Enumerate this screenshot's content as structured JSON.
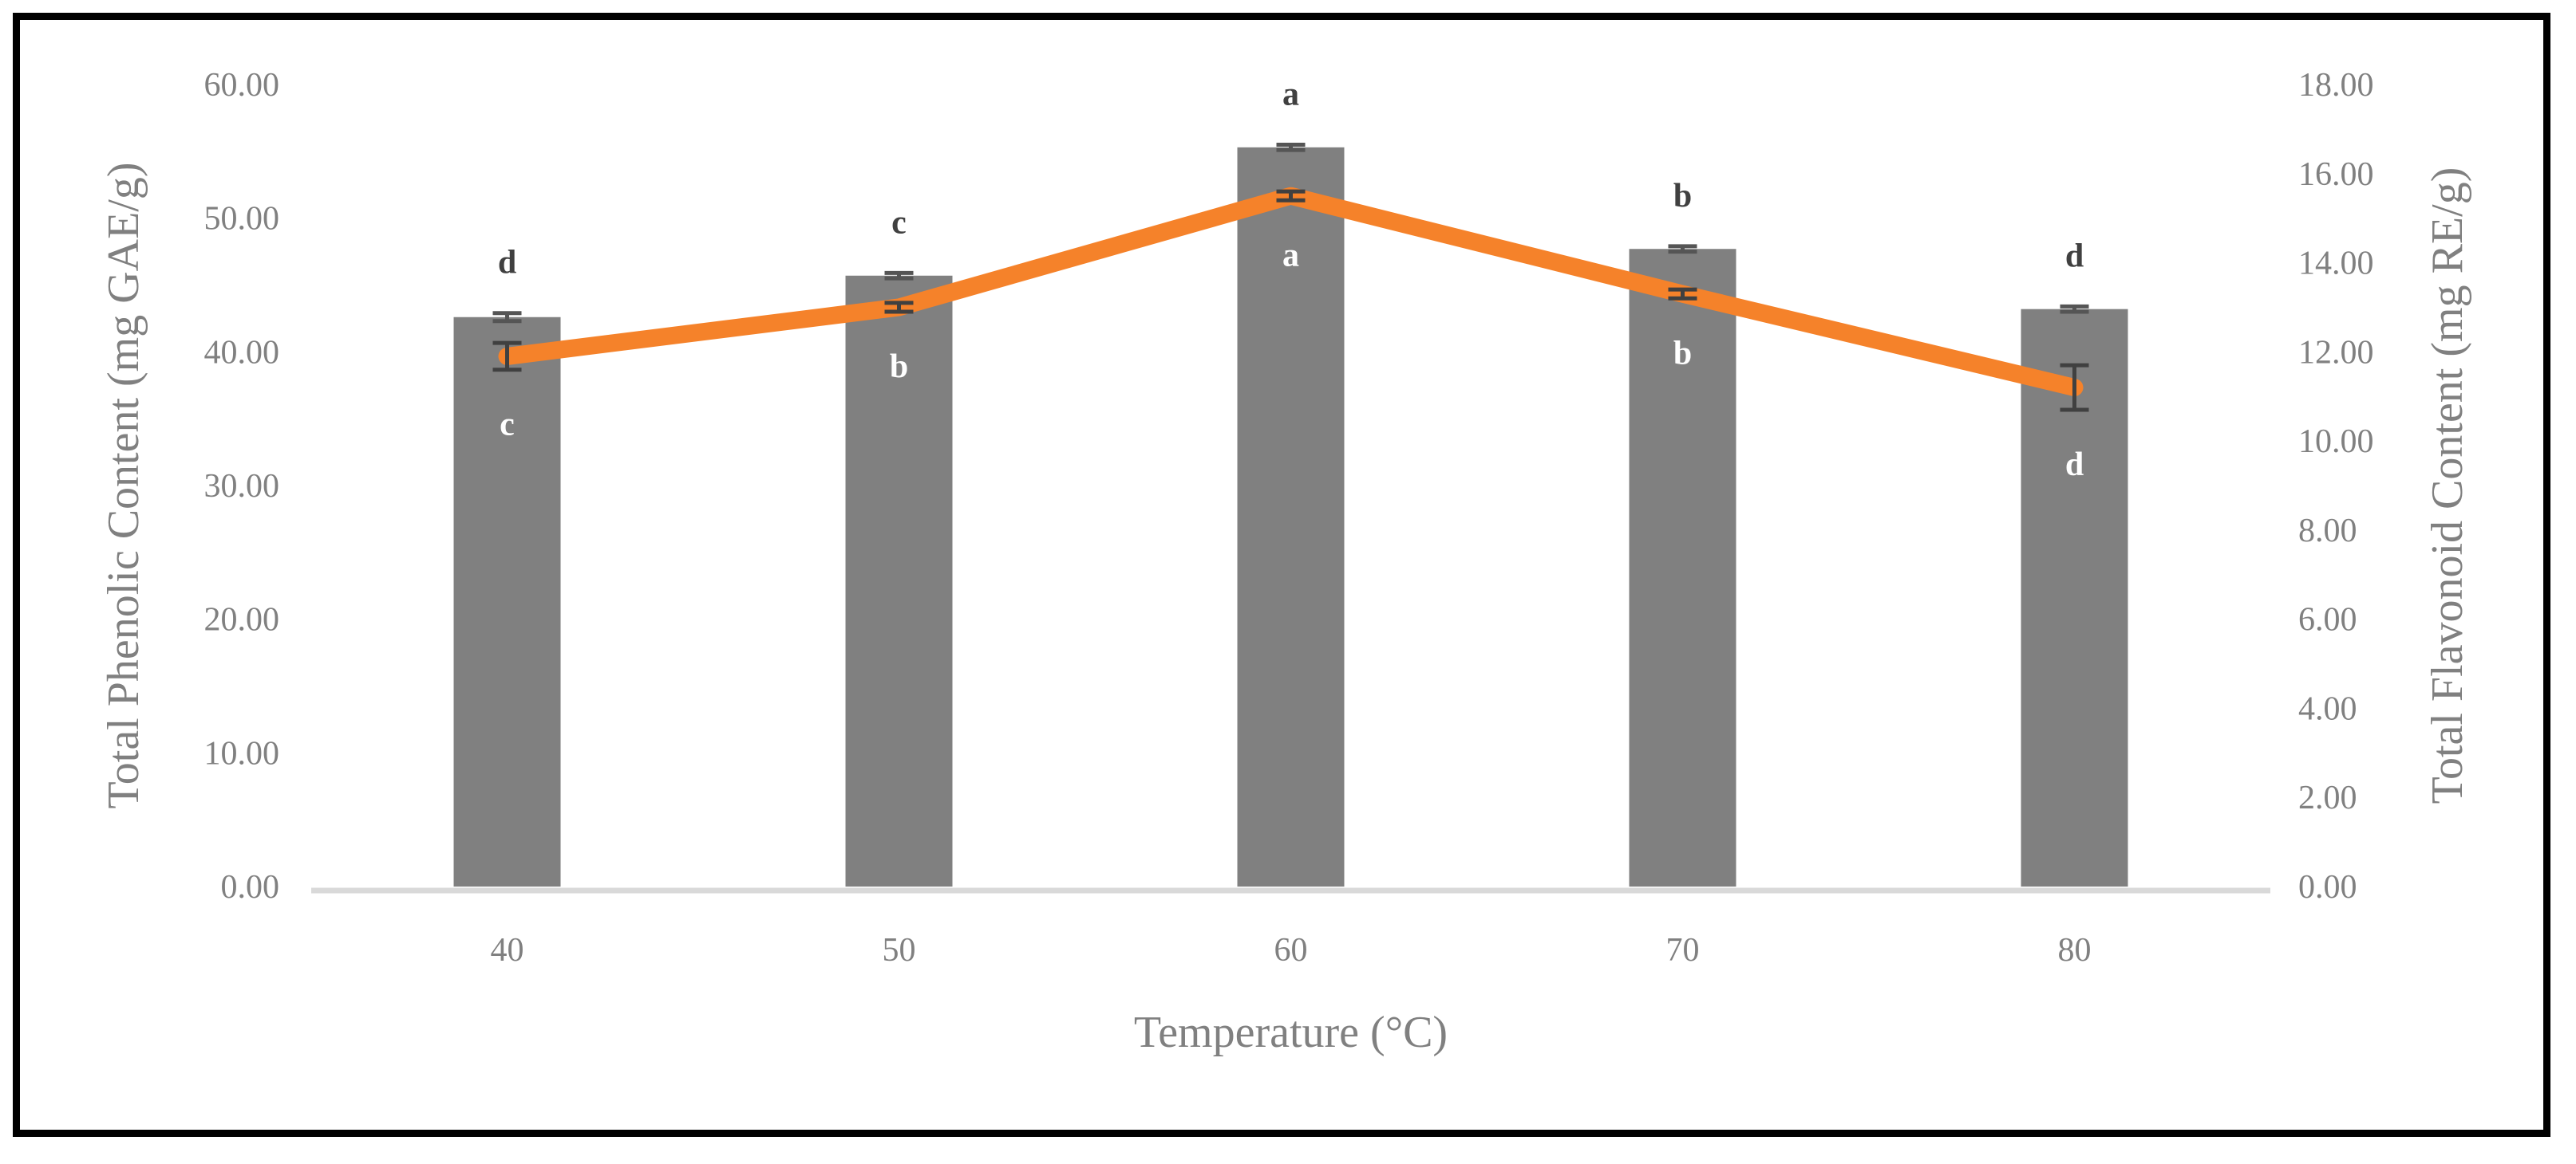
{
  "chart_data": {
    "type": "bar",
    "categories": [
      "40",
      "50",
      "60",
      "70",
      "80"
    ],
    "xlabel": "Temperature (°C)",
    "ylabel": "Total Phenolic Content (mg GAE/g)",
    "y2label": "Total Flavonoid Content (mg RE/g)",
    "ylim": [
      0,
      60
    ],
    "y2lim": [
      0,
      18
    ],
    "yticks": [
      "0.00",
      "10.00",
      "20.00",
      "30.00",
      "40.00",
      "50.00",
      "60.00"
    ],
    "y2ticks": [
      "0.00",
      "2.00",
      "4.00",
      "6.00",
      "8.00",
      "10.00",
      "12.00",
      "14.00",
      "16.00",
      "18.00"
    ],
    "series": [
      {
        "name": "Total Phenolic Content",
        "type": "bar",
        "axis": "left",
        "color": "#808080",
        "values": [
          42.6,
          45.7,
          55.3,
          47.7,
          43.2
        ],
        "errors": [
          0.3,
          0.2,
          0.2,
          0.2,
          0.2
        ],
        "letters": [
          "d",
          "c",
          "a",
          "b",
          "d"
        ]
      },
      {
        "name": "Total Flavonoid Content",
        "type": "line",
        "axis": "right",
        "color": "#F5822A",
        "values": [
          11.9,
          13.0,
          15.5,
          13.3,
          11.2
        ],
        "errors": [
          0.3,
          0.1,
          0.1,
          0.1,
          0.5
        ],
        "letters": [
          "c",
          "b",
          "a",
          "b",
          "d"
        ]
      }
    ]
  }
}
